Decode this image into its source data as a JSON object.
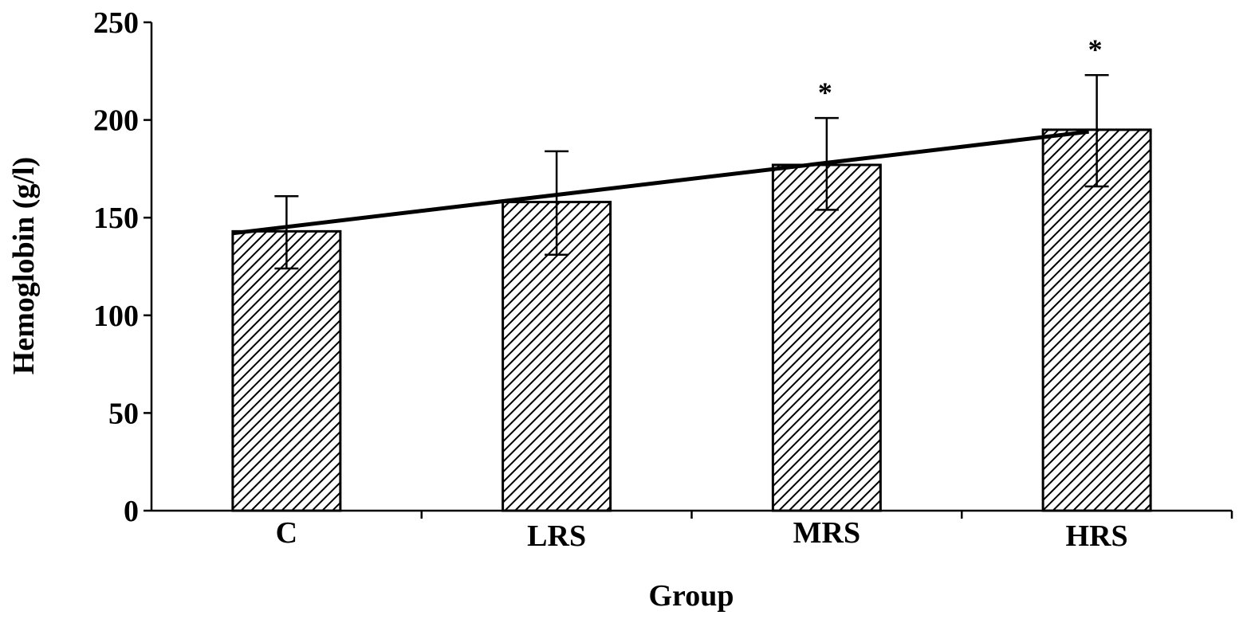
{
  "chart_data": {
    "type": "bar",
    "categories": [
      "C",
      "LRS",
      "MRS",
      "HRS"
    ],
    "values": [
      143,
      158,
      177,
      195
    ],
    "error_upper": [
      161,
      184,
      201,
      223
    ],
    "error_lower": [
      124,
      131,
      154,
      166
    ],
    "significance": [
      "",
      "",
      "*",
      "*"
    ],
    "trend_line": {
      "start": 142,
      "end": 194
    },
    "xlabel": "Group",
    "ylabel": "Hemoglobin (g/l)",
    "ylim": [
      0,
      250
    ],
    "yticks": [
      0,
      50,
      100,
      150,
      200,
      250
    ],
    "grid": false,
    "legend": "none",
    "bar_fill": "diagonal-hatch",
    "colors": {
      "bar_stroke": "#000000",
      "hatch": "#000000",
      "background": "#ffffff"
    }
  }
}
